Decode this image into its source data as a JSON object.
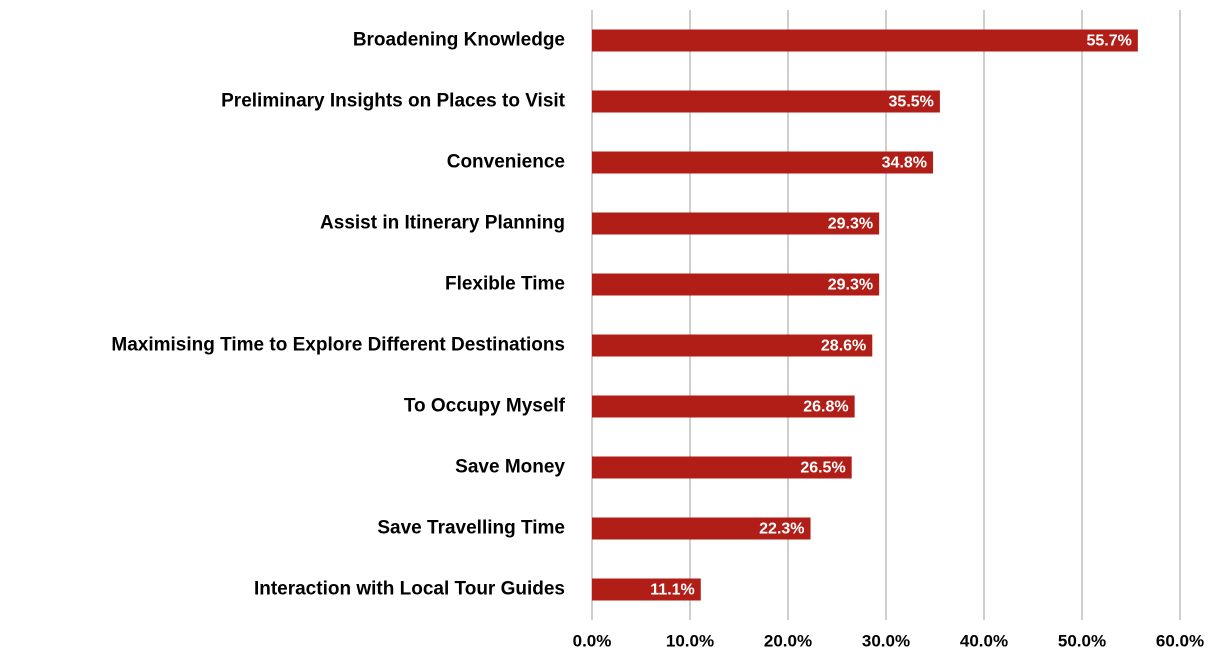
{
  "chart_data": {
    "type": "barh",
    "categories": [
      "Broadening Knowledge",
      "Preliminary Insights on Places to Visit",
      "Convenience",
      "Assist in Itinerary Planning",
      "Flexible Time",
      "Maximising Time to Explore Different Destinations",
      "To Occupy Myself",
      "Save Money",
      "Save Travelling Time",
      "Interaction with Local Tour Guides"
    ],
    "values": [
      55.7,
      35.5,
      34.8,
      29.3,
      29.3,
      28.6,
      26.8,
      26.5,
      22.3,
      11.1
    ],
    "value_labels": [
      "55.7%",
      "35.5%",
      "34.8%",
      "29.3%",
      "29.3%",
      "28.6%",
      "26.8%",
      "26.5%",
      "22.3%",
      "11.1%"
    ],
    "color": "#b01e17",
    "xlim": [
      0,
      60
    ],
    "xticks": [
      {
        "value": 0,
        "label": "0.0%"
      },
      {
        "value": 10,
        "label": "10.0%"
      },
      {
        "value": 20,
        "label": "20.0%"
      },
      {
        "value": 30,
        "label": "30.0%"
      },
      {
        "value": 40,
        "label": "40.0%"
      },
      {
        "value": 50,
        "label": "50.0%"
      },
      {
        "value": 60,
        "label": "60.0%"
      }
    ],
    "grid": true
  }
}
